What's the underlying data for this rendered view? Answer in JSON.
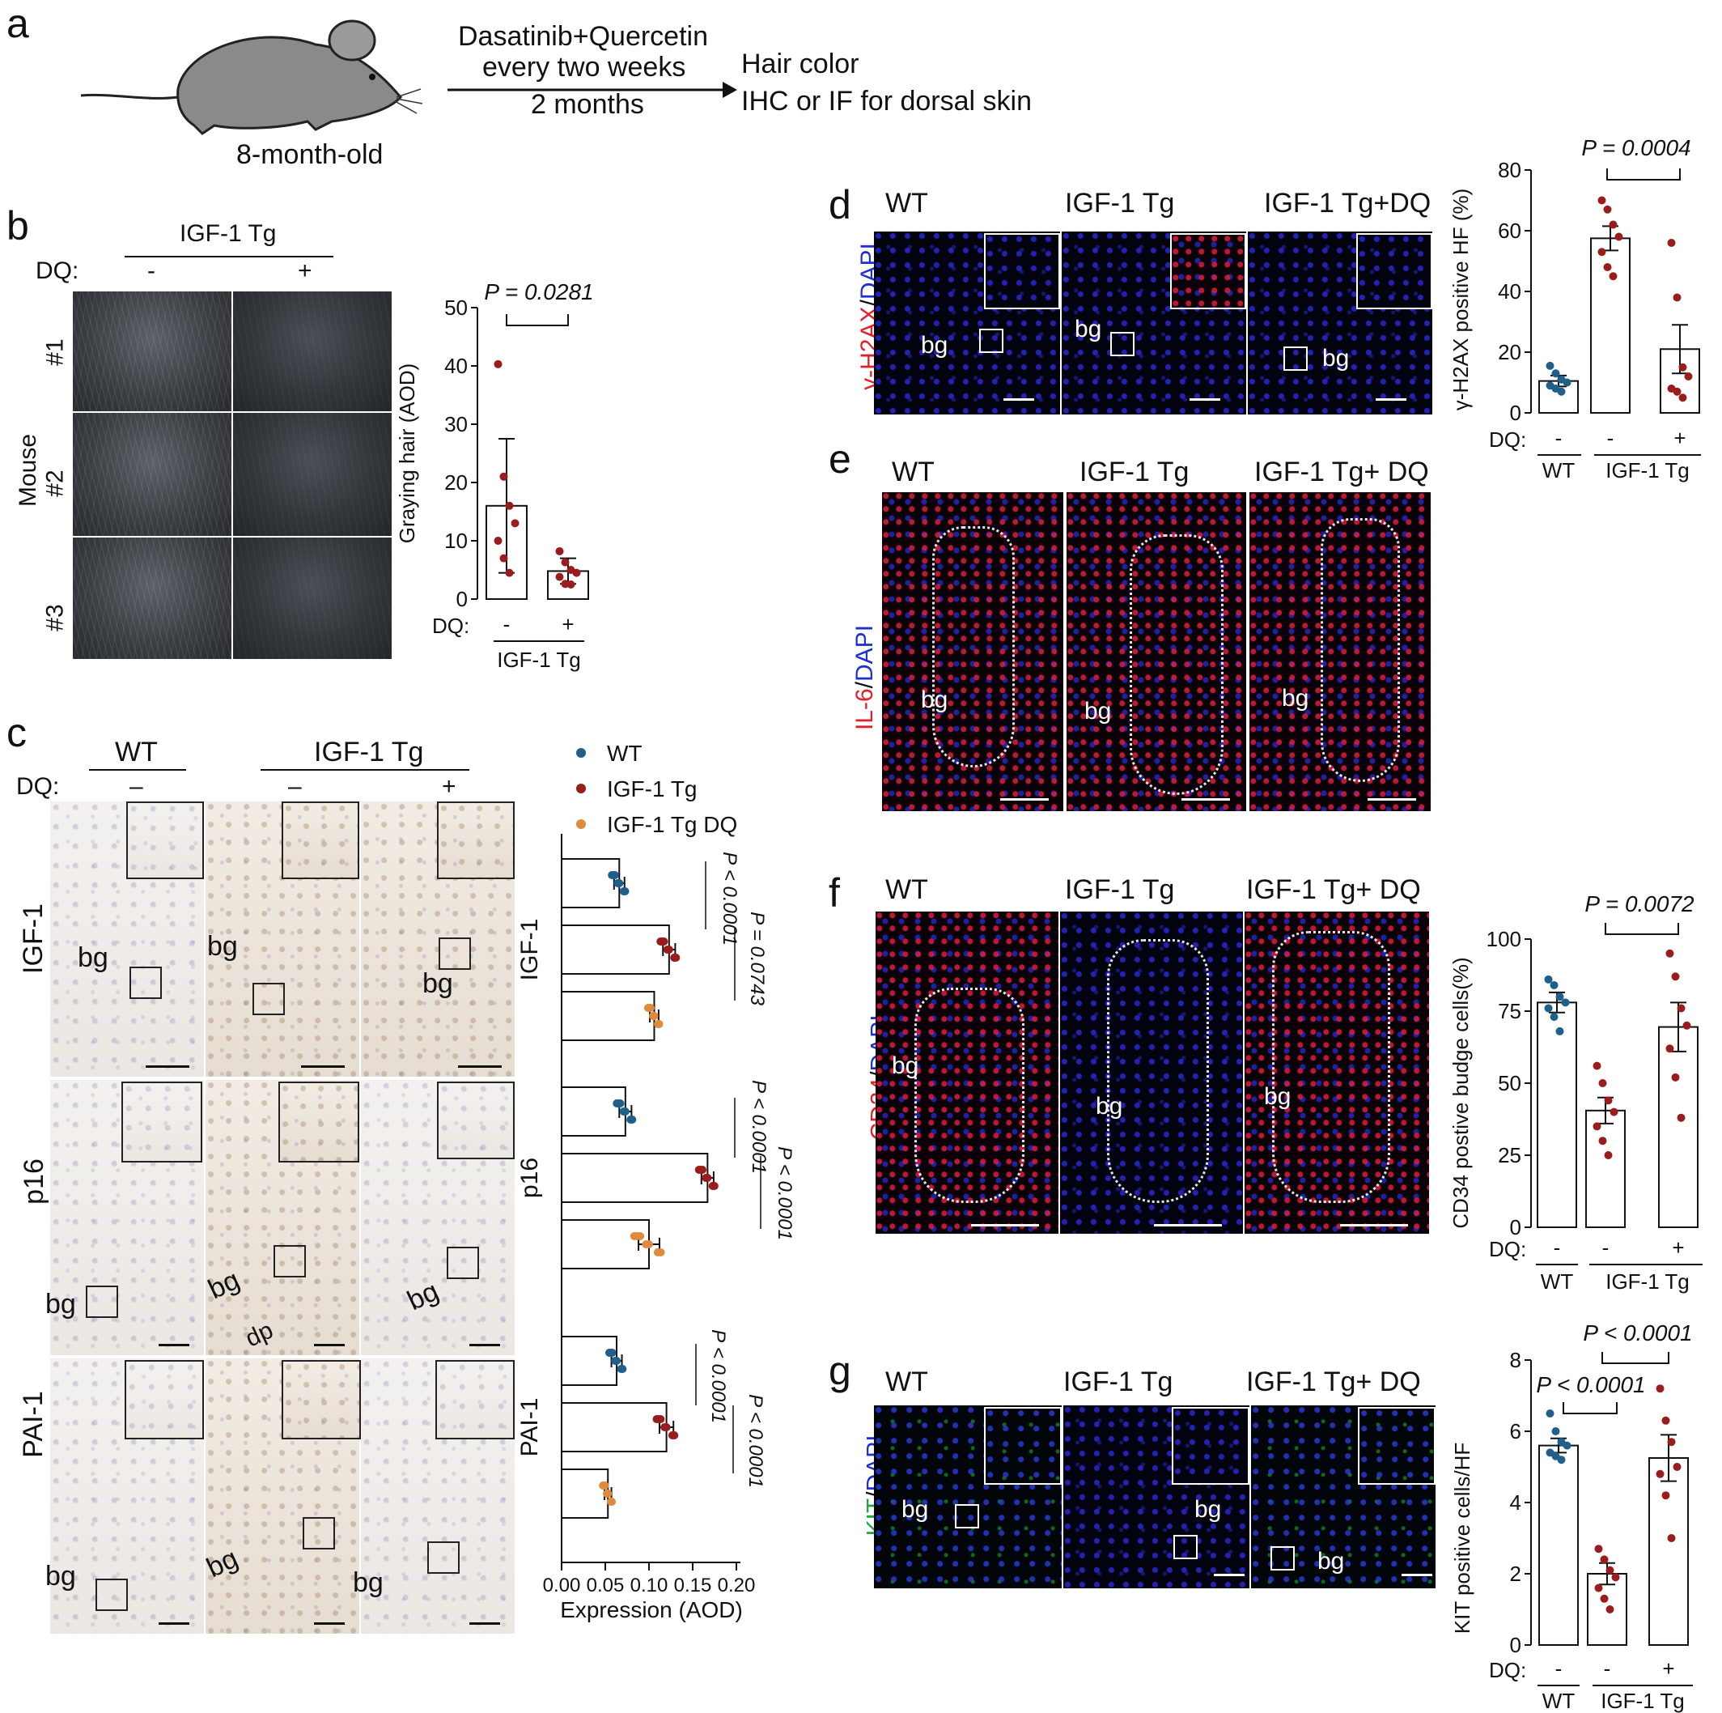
{
  "panel_a": {
    "label": "a",
    "mouse_age": "8-month-old",
    "treatment_line1": "Dasatinib+Quercetin",
    "treatment_line2": "every two weeks",
    "treatment_duration": "2 months",
    "readout1": "Hair color",
    "readout2": "IHC or IF for dorsal skin"
  },
  "panel_b": {
    "label": "b",
    "group_header": "IGF-1 Tg",
    "dq_label": "DQ:",
    "dq_minus": "-",
    "dq_plus": "+",
    "mouse_axis": "Mouse",
    "rows": [
      "#1",
      "#2",
      "#3"
    ],
    "p_value": "P = 0.0281",
    "group_label": "IGF-1 Tg"
  },
  "panel_c": {
    "label": "c",
    "col_wt": "WT",
    "col_tg": "IGF-1 Tg",
    "dq_label": "DQ:",
    "dq_values": [
      "–",
      "–",
      "+"
    ],
    "rows": [
      "IGF-1",
      "p16",
      "PAI-1"
    ],
    "bg": "bg",
    "dp": "dp",
    "legend": [
      "WT",
      "IGF-1 Tg",
      "IGF-1 Tg DQ"
    ],
    "p_igf1_a": "P < 0.0001",
    "p_igf1_b": "P = 0.0743",
    "p_p16_a": "P < 0.0001",
    "p_p16_b": "P < 0.0001",
    "p_pai1_a": "P < 0.0001",
    "p_pai1_b": "P < 0.0001"
  },
  "panel_d": {
    "label": "d",
    "cols": [
      "WT",
      "IGF-1 Tg",
      "IGF-1 Tg+DQ"
    ],
    "stain_red": "γ-H2AX",
    "stain_sep": "/",
    "stain_blue": "DAPI",
    "bg": "bg",
    "p_value": "P = 0.0004",
    "dq_label": "DQ:",
    "group_wt": "WT",
    "group_tg": "IGF-1 Tg"
  },
  "panel_e": {
    "label": "e",
    "cols": [
      "WT",
      "IGF-1 Tg",
      "IGF-1 Tg+ DQ"
    ],
    "stain_red": "IL-6",
    "stain_sep": "/",
    "stain_blue": "DAPI",
    "bg": "bg"
  },
  "panel_f": {
    "label": "f",
    "cols": [
      "WT",
      "IGF-1 Tg",
      "IGF-1 Tg+ DQ"
    ],
    "stain_red": "CD34",
    "stain_sep": "/",
    "stain_blue": "DAPI",
    "bg": "bg",
    "p_value": "P = 0.0072",
    "dq_label": "DQ:",
    "group_wt": "WT",
    "group_tg": "IGF-1 Tg"
  },
  "panel_g": {
    "label": "g",
    "cols": [
      "WT",
      "IGF-1 Tg",
      "IGF-1 Tg+ DQ"
    ],
    "stain_green": "KIT",
    "stain_sep": "/",
    "stain_blue": "DAPI",
    "bg": "bg",
    "p_value_1": "P < 0.0001",
    "p_value_2": "P < 0.0001",
    "dq_label": "DQ:",
    "group_wt": "WT",
    "group_tg": "IGF-1 Tg"
  },
  "colors": {
    "wt": "#1f5f8b",
    "tg": "#9b1c1c",
    "tgdq": "#e08a3c",
    "red_stain": "#e0202a",
    "blue_stain": "#1f2fd0",
    "green_stain": "#1fa83a"
  },
  "chart_data": [
    {
      "id": "b",
      "type": "bar",
      "ylabel": "Graying hair (AOD)",
      "ylim": [
        0,
        50
      ],
      "yticks": [
        0,
        10,
        20,
        30,
        40,
        50
      ],
      "categories": [
        "-",
        "+"
      ],
      "values": [
        16,
        4.8
      ],
      "errors": [
        11.5,
        2.2
      ],
      "points": [
        [
          40.3,
          21,
          16,
          13,
          10,
          7,
          4.5
        ],
        [
          8.2,
          6.3,
          5,
          4.5,
          3.8,
          2.6,
          2.5
        ]
      ]
    },
    {
      "id": "c",
      "type": "bar",
      "orientation": "horizontal",
      "xlabel": "Expression (AOD)",
      "xlim": [
        0,
        0.2
      ],
      "xticks": [
        "0.00",
        "0.05",
        "0.10",
        "0.15",
        "0.20"
      ],
      "groups": [
        "IGF-1",
        "p16",
        "PAI-1"
      ],
      "series": [
        {
          "name": "WT",
          "values": [
            0.066,
            0.073,
            0.063
          ],
          "errors": [
            0.006,
            0.007,
            0.006
          ]
        },
        {
          "name": "IGF-1 Tg",
          "values": [
            0.123,
            0.167,
            0.12
          ],
          "errors": [
            0.007,
            0.007,
            0.008
          ]
        },
        {
          "name": "IGF-1 Tg DQ",
          "values": [
            0.106,
            0.1,
            0.053
          ],
          "errors": [
            0.005,
            0.012,
            0.004
          ]
        }
      ]
    },
    {
      "id": "d",
      "type": "bar",
      "ylabel": "γ-H2AX positive HF (%)",
      "ylim": [
        0,
        80
      ],
      "yticks": [
        0,
        20,
        40,
        60,
        80
      ],
      "categories": [
        "-",
        "-",
        "+"
      ],
      "values": [
        10.5,
        57.5,
        21
      ],
      "errors": [
        1.8,
        4,
        8
      ],
      "points": [
        [
          15.5,
          13,
          11,
          10,
          9,
          8,
          7
        ],
        [
          70,
          67,
          62,
          58,
          53,
          48,
          45
        ],
        [
          56,
          38,
          15,
          12,
          8,
          7,
          5
        ]
      ]
    },
    {
      "id": "f",
      "type": "bar",
      "ylabel": "CD34 postive budge cells(%)",
      "ylim": [
        0,
        100
      ],
      "yticks": [
        0,
        25,
        50,
        75,
        100
      ],
      "categories": [
        "-",
        "-",
        "+"
      ],
      "values": [
        78,
        40.5,
        69.5
      ],
      "errors": [
        3.5,
        4.5,
        8.5
      ],
      "points": [
        [
          86,
          84,
          80,
          78,
          76,
          73,
          68
        ],
        [
          56,
          50,
          44,
          40,
          35,
          30,
          25
        ],
        [
          95,
          87,
          76,
          70,
          62,
          52,
          38
        ]
      ]
    },
    {
      "id": "g",
      "type": "bar",
      "ylabel": "KIT positive cells/HF",
      "ylim": [
        0,
        8
      ],
      "yticks": [
        0,
        2,
        4,
        6,
        8
      ],
      "categories": [
        "-",
        "-",
        "+"
      ],
      "values": [
        5.6,
        2.0,
        5.25
      ],
      "errors": [
        0.2,
        0.3,
        0.65
      ],
      "points": [
        [
          6.5,
          6.0,
          5.7,
          5.6,
          5.4,
          5.3,
          5.2
        ],
        [
          2.7,
          2.4,
          2.1,
          1.9,
          1.6,
          1.3,
          1.0
        ],
        [
          7.2,
          6.3,
          5.7,
          5.0,
          4.8,
          4.2,
          3.0
        ]
      ]
    }
  ]
}
